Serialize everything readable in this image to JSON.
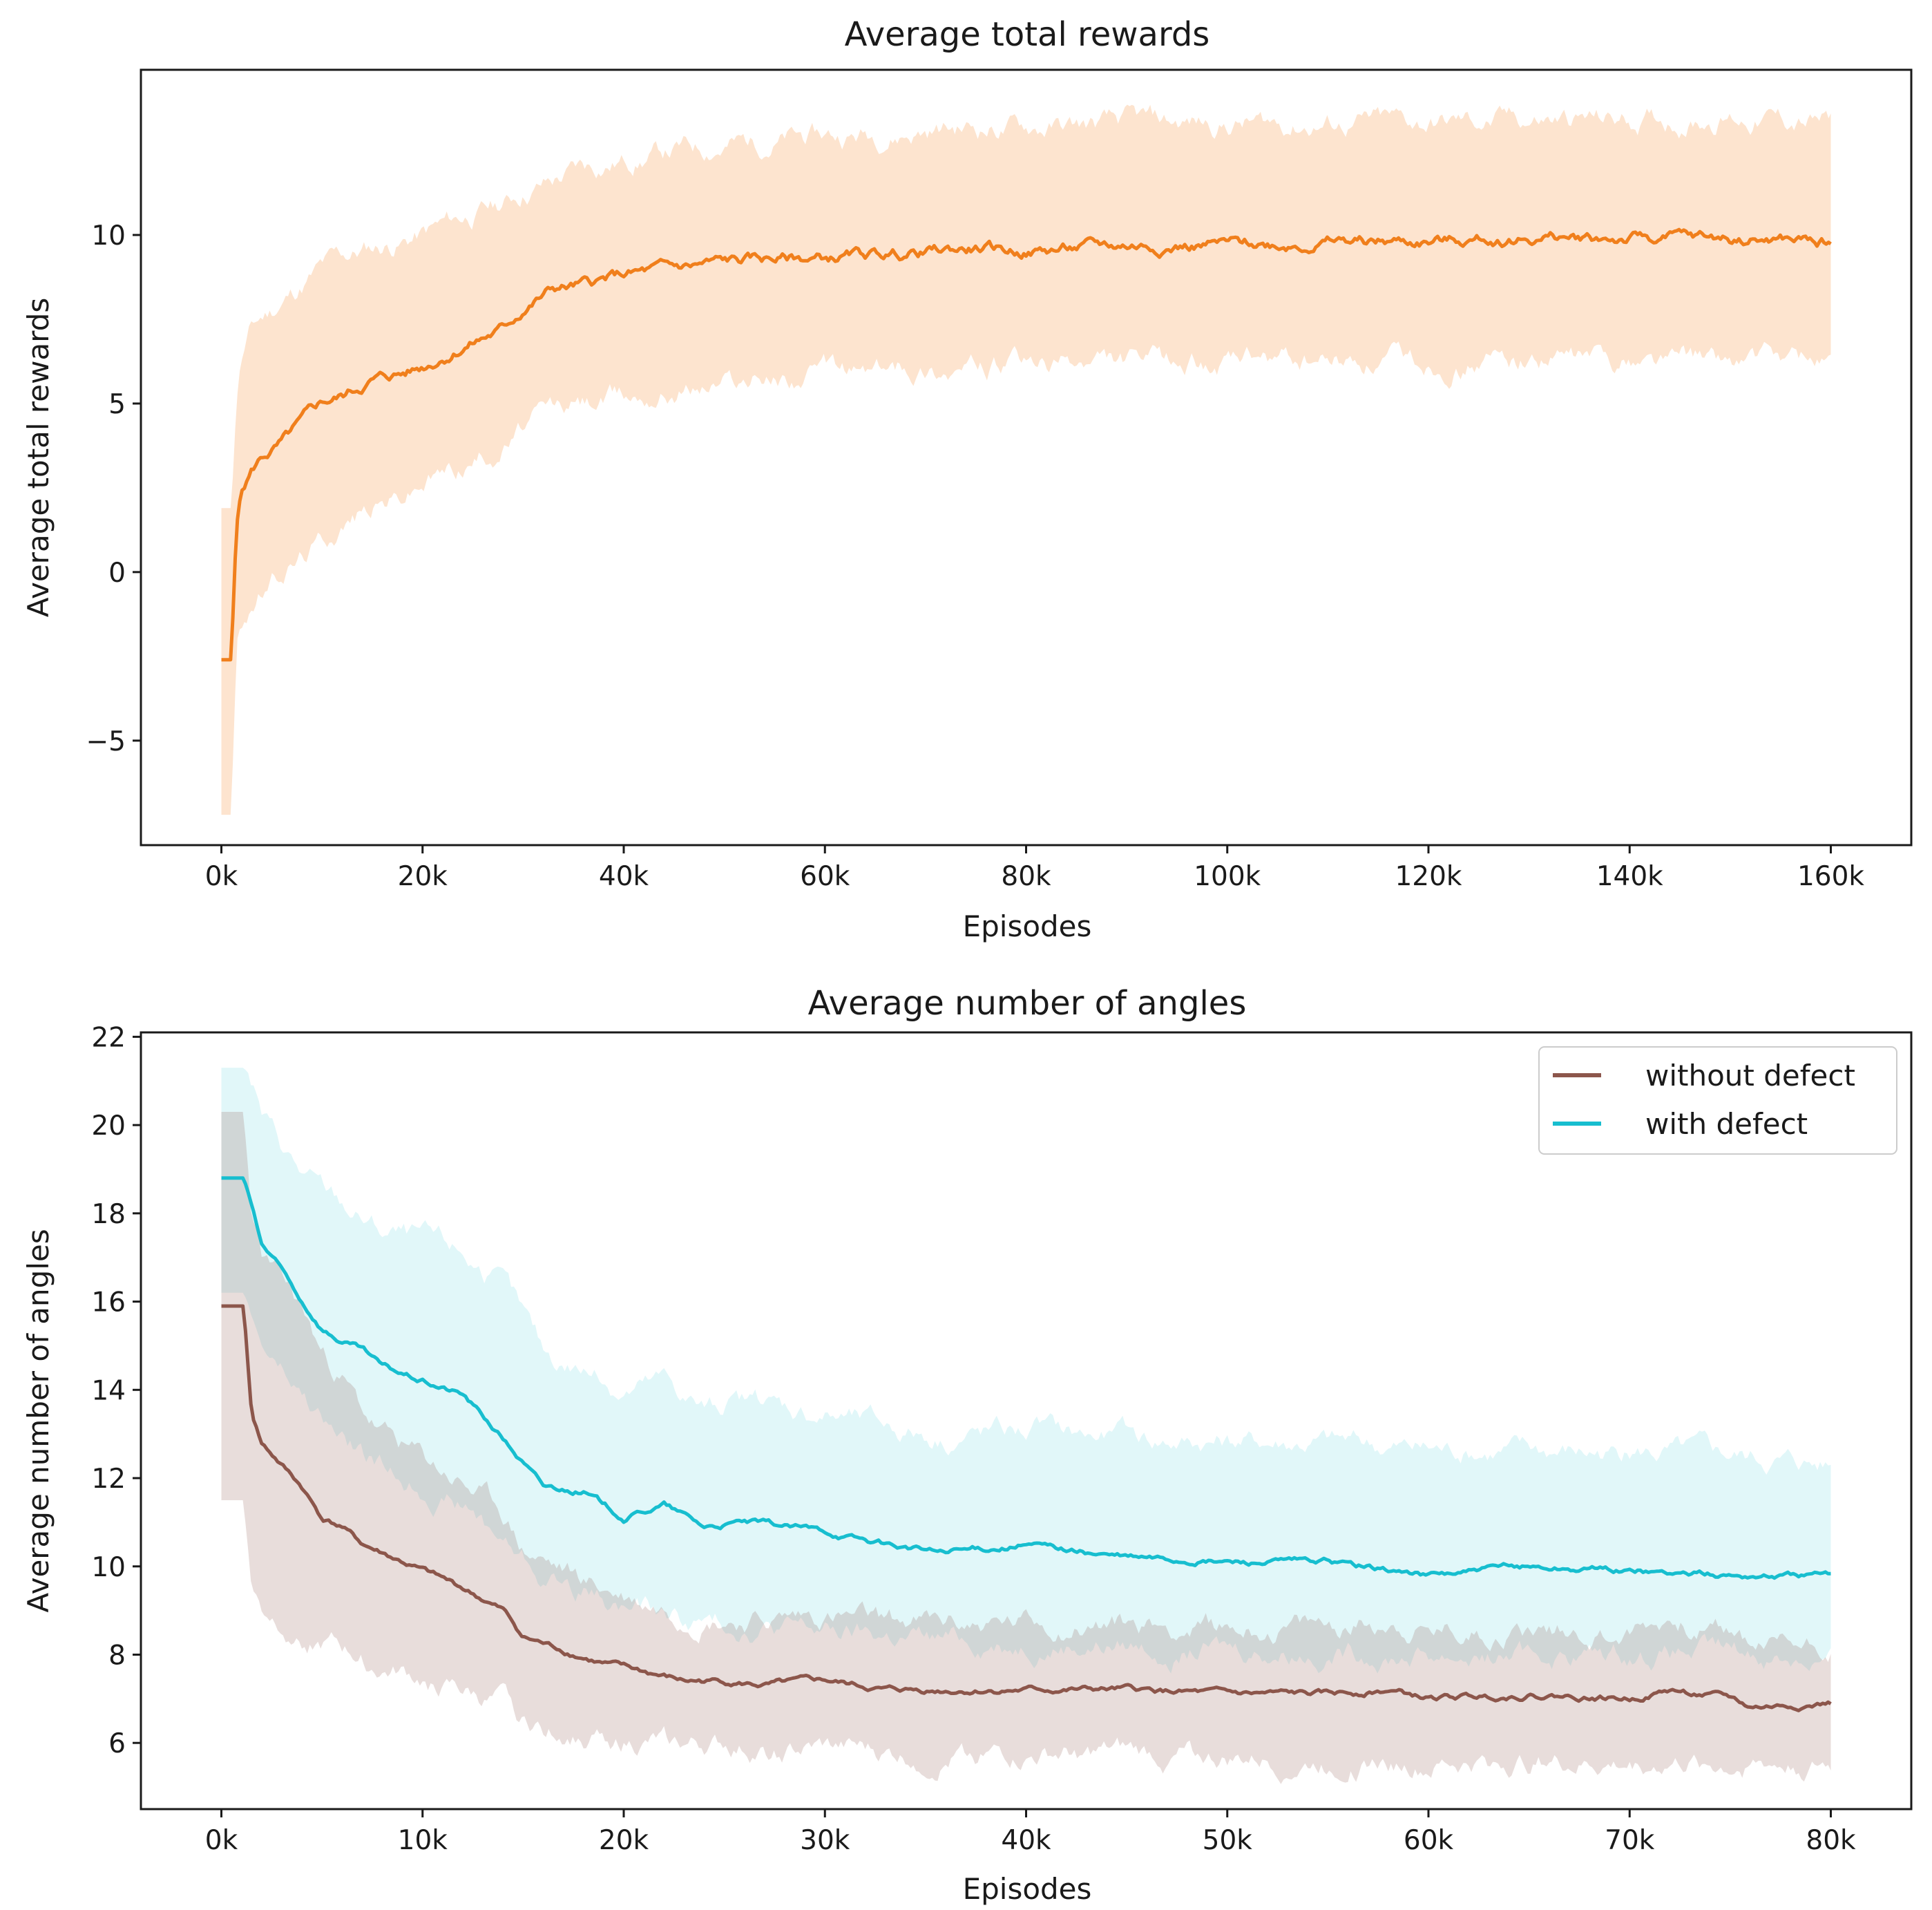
{
  "colors": {
    "rewards_line": "#f07f1c",
    "rewards_band": "#fde4cf",
    "without_defect": "#8c564b",
    "with_defect": "#17becf"
  },
  "chart_data": [
    {
      "type": "line",
      "title": "Average total rewards",
      "xlabel": "Episodes",
      "ylabel": "Average total rewards",
      "xlim": [
        -8000,
        168000
      ],
      "ylim": [
        -8.1,
        14.9
      ],
      "xticks": [
        0,
        20000,
        40000,
        60000,
        80000,
        100000,
        120000,
        140000,
        160000
      ],
      "xtick_labels": [
        "0k",
        "20k",
        "40k",
        "60k",
        "80k",
        "100k",
        "120k",
        "140k",
        "160k"
      ],
      "yticks": [
        -5,
        0,
        5,
        10
      ],
      "ytick_labels": [
        "−5",
        "0",
        "5",
        "10"
      ],
      "series": [
        {
          "name": "Average total rewards",
          "x": [
            0,
            1000,
            1500,
            2000,
            3000,
            4000,
            6000,
            8000,
            10000,
            12000,
            15000,
            18000,
            20000,
            24000,
            28000,
            30000,
            33000,
            36000,
            40000,
            45000,
            50000,
            55000,
            60000,
            65000,
            70000,
            75000,
            80000,
            85000,
            90000,
            95000,
            100000,
            110000,
            120000,
            130000,
            140000,
            150000,
            160000
          ],
          "y": [
            -2.6,
            -2.6,
            1.5,
            2.4,
            3.0,
            3.4,
            3.8,
            4.4,
            5.0,
            5.2,
            5.7,
            5.9,
            6.1,
            6.7,
            7.2,
            7.8,
            8.4,
            8.5,
            8.8,
            9.0,
            9.2,
            9.3,
            9.3,
            9.4,
            9.5,
            9.6,
            9.5,
            9.6,
            9.7,
            9.7,
            9.7,
            9.8,
            9.8,
            9.9,
            9.9,
            9.9,
            9.8
          ],
          "lower": [
            -7.2,
            -7.2,
            -2.3,
            -1.6,
            -1.0,
            -0.6,
            0.0,
            0.5,
            1.0,
            1.5,
            2.0,
            2.3,
            2.7,
            3.2,
            3.8,
            4.3,
            4.8,
            5.0,
            5.2,
            5.5,
            5.7,
            5.8,
            5.9,
            6.0,
            6.1,
            6.1,
            6.1,
            6.1,
            6.2,
            6.2,
            6.2,
            6.2,
            6.2,
            6.3,
            6.3,
            6.3,
            6.3
          ],
          "upper": [
            1.9,
            1.9,
            5.3,
            6.4,
            7.2,
            7.5,
            8.0,
            8.5,
            9.0,
            9.3,
            9.6,
            9.8,
            10.0,
            10.5,
            10.9,
            11.3,
            11.6,
            12.0,
            12.2,
            12.5,
            12.7,
            12.8,
            12.9,
            13.0,
            13.1,
            13.2,
            13.2,
            13.2,
            13.3,
            13.3,
            13.3,
            13.3,
            13.3,
            13.4,
            13.4,
            13.5,
            13.3
          ]
        }
      ]
    },
    {
      "type": "line",
      "title": "Average number of angles",
      "xlabel": "Episodes",
      "ylabel": "Average number of angles",
      "xlim": [
        -4000,
        84000
      ],
      "ylim": [
        4.5,
        22.1
      ],
      "xticks": [
        0,
        10000,
        20000,
        30000,
        40000,
        50000,
        60000,
        70000,
        80000
      ],
      "xtick_labels": [
        "0k",
        "10k",
        "20k",
        "30k",
        "40k",
        "50k",
        "60k",
        "70k",
        "80k"
      ],
      "yticks": [
        6,
        8,
        10,
        12,
        14,
        16,
        18,
        20,
        22
      ],
      "ytick_labels": [
        "6",
        "8",
        "10",
        "12",
        "14",
        "16",
        "18",
        "20",
        "22"
      ],
      "legend": {
        "placement": "top-right",
        "entries": [
          "without defect",
          "with defect"
        ]
      },
      "series": [
        {
          "name": "without defect",
          "x": [
            0,
            1100,
            1500,
            2000,
            3000,
            4000,
            5000,
            6000,
            7000,
            8000,
            10000,
            12000,
            14000,
            15000,
            17000,
            19000,
            21000,
            23000,
            25000,
            27000,
            30000,
            33000,
            36000,
            40000,
            45000,
            50000,
            55000,
            58000,
            60000,
            65000,
            70000,
            72000,
            75000,
            76000,
            80000
          ],
          "y": [
            15.9,
            15.9,
            13.5,
            12.8,
            12.3,
            11.8,
            11.1,
            10.9,
            10.5,
            10.3,
            9.9,
            9.5,
            9.0,
            8.4,
            8.1,
            7.8,
            7.6,
            7.4,
            7.4,
            7.3,
            7.4,
            7.2,
            7.2,
            7.2,
            7.2,
            7.1,
            7.1,
            7.2,
            7.0,
            7.1,
            7.0,
            7.2,
            7.0,
            6.8,
            6.9
          ],
          "lower": [
            11.5,
            11.5,
            9.6,
            9.0,
            8.8,
            8.5,
            8.3,
            8.1,
            7.9,
            7.7,
            7.4,
            7.1,
            6.8,
            6.4,
            6.3,
            6.1,
            6.0,
            5.9,
            5.9,
            5.8,
            5.8,
            5.7,
            5.7,
            5.7,
            5.7,
            5.6,
            5.6,
            5.6,
            5.5,
            5.6,
            5.5,
            5.6,
            5.5,
            5.5,
            5.5
          ],
          "upper": [
            20.3,
            20.3,
            18.0,
            17.0,
            16.4,
            15.8,
            14.8,
            14.3,
            13.5,
            13.0,
            12.4,
            11.9,
            11.2,
            10.4,
            9.9,
            9.5,
            9.2,
            9.0,
            8.9,
            8.8,
            8.9,
            8.7,
            8.7,
            8.7,
            8.7,
            8.6,
            8.6,
            8.8,
            8.5,
            8.6,
            8.5,
            8.8,
            8.5,
            8.2,
            8.3
          ]
        },
        {
          "name": "with defect",
          "x": [
            0,
            1100,
            1600,
            2000,
            3000,
            4000,
            5000,
            6000,
            7000,
            8000,
            10000,
            12000,
            14000,
            16000,
            18000,
            20000,
            22000,
            24000,
            26000,
            28000,
            30000,
            33000,
            36000,
            40000,
            45000,
            50000,
            55000,
            60000,
            65000,
            70000,
            75000,
            80000
          ],
          "y": [
            18.8,
            18.8,
            18.0,
            17.3,
            16.7,
            16.0,
            15.4,
            15.1,
            14.9,
            14.5,
            14.2,
            13.9,
            12.9,
            11.8,
            11.7,
            11.1,
            11.4,
            10.9,
            11.0,
            10.9,
            10.8,
            10.5,
            10.3,
            10.5,
            10.2,
            10.1,
            10.1,
            9.8,
            10.0,
            9.9,
            9.8,
            9.8
          ],
          "lower": [
            16.2,
            16.2,
            15.5,
            15.0,
            14.4,
            13.8,
            13.3,
            12.8,
            12.5,
            12.2,
            11.8,
            11.4,
            10.6,
            9.8,
            9.5,
            9.1,
            8.9,
            8.7,
            8.7,
            8.6,
            8.5,
            8.4,
            8.3,
            8.3,
            8.2,
            8.1,
            8.1,
            8.0,
            8.0,
            8.0,
            8.0,
            7.9
          ],
          "upper": [
            21.3,
            21.3,
            20.8,
            20.2,
            19.5,
            18.9,
            18.5,
            18.2,
            17.9,
            17.6,
            17.4,
            17.1,
            16.3,
            14.8,
            14.5,
            14.0,
            14.2,
            13.6,
            13.7,
            13.6,
            13.5,
            13.2,
            13.0,
            13.1,
            12.9,
            12.8,
            12.8,
            12.6,
            12.6,
            12.6,
            12.5,
            12.3
          ]
        }
      ]
    }
  ]
}
